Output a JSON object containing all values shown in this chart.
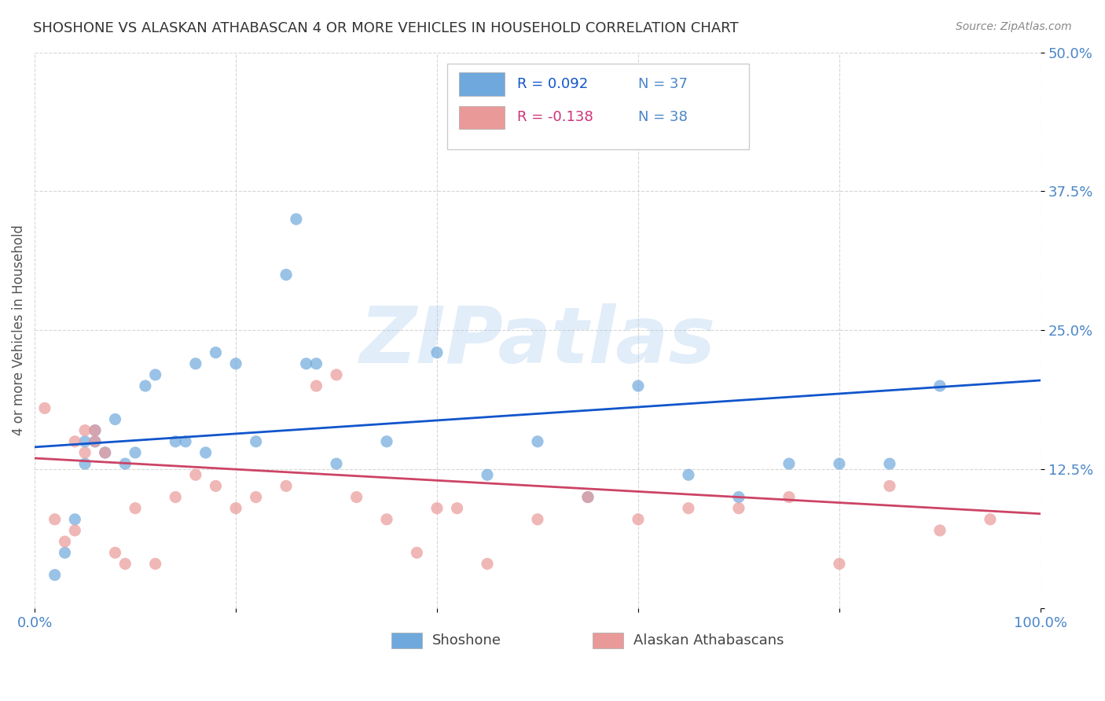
{
  "title": "SHOSHONE VS ALASKAN ATHABASCAN 4 OR MORE VEHICLES IN HOUSEHOLD CORRELATION CHART",
  "source": "Source: ZipAtlas.com",
  "ylabel": "4 or more Vehicles in Household",
  "xlabel": "",
  "xlim": [
    0,
    100
  ],
  "ylim": [
    0,
    50
  ],
  "yticks": [
    0,
    12.5,
    25.0,
    37.5,
    50.0
  ],
  "xticks": [
    0,
    20,
    40,
    60,
    80,
    100
  ],
  "xtick_labels": [
    "0.0%",
    "",
    "",
    "",
    "",
    "100.0%"
  ],
  "blue_color": "#6fa8dc",
  "pink_color": "#ea9999",
  "blue_line_color": "#1155cc",
  "pink_line_color": "#cc4466",
  "axis_color": "#4a86c8",
  "watermark_text": "ZIPatlas",
  "watermark_color": "#aaccee",
  "legend_R_blue": "R = 0.092",
  "legend_N_blue": "N = 37",
  "legend_R_pink": "R = -0.138",
  "legend_N_pink": "N = 38",
  "shoshone_x": [
    2,
    3,
    4,
    5,
    5,
    6,
    6,
    7,
    8,
    9,
    10,
    11,
    12,
    14,
    15,
    16,
    17,
    18,
    20,
    22,
    25,
    26,
    27,
    28,
    30,
    35,
    40,
    45,
    50,
    55,
    60,
    65,
    70,
    75,
    80,
    85,
    90
  ],
  "shoshone_y": [
    3,
    5,
    8,
    13,
    15,
    15,
    16,
    14,
    17,
    13,
    14,
    20,
    21,
    15,
    15,
    22,
    14,
    23,
    22,
    15,
    30,
    35,
    22,
    22,
    13,
    15,
    23,
    12,
    15,
    10,
    20,
    12,
    10,
    13,
    13,
    13,
    20
  ],
  "athabascan_x": [
    1,
    2,
    3,
    4,
    4,
    5,
    5,
    6,
    6,
    7,
    8,
    9,
    10,
    12,
    14,
    16,
    18,
    20,
    22,
    25,
    28,
    30,
    32,
    35,
    38,
    40,
    42,
    45,
    50,
    55,
    60,
    65,
    70,
    75,
    80,
    85,
    90,
    95
  ],
  "athabascan_y": [
    18,
    8,
    6,
    15,
    7,
    14,
    16,
    15,
    16,
    14,
    5,
    4,
    9,
    4,
    10,
    12,
    11,
    9,
    10,
    11,
    20,
    21,
    10,
    8,
    5,
    9,
    9,
    4,
    8,
    10,
    8,
    9,
    9,
    10,
    4,
    11,
    7,
    8
  ],
  "blue_trendline_x": [
    0,
    100
  ],
  "blue_trendline_y": [
    14.5,
    20.5
  ],
  "pink_trendline_x": [
    0,
    100
  ],
  "pink_trendline_y": [
    13.5,
    8.5
  ],
  "marker_size": 120,
  "background_color": "#ffffff",
  "grid_color": "#cccccc"
}
